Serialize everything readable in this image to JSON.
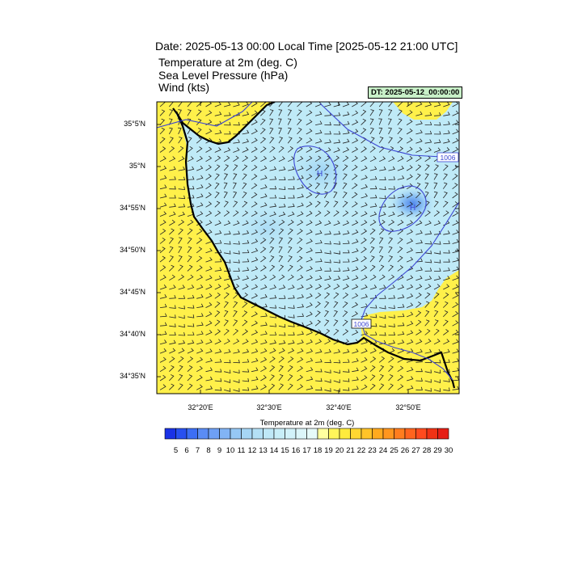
{
  "title": "Date: 2025-05-13  00:00 Local Time [2025-05-12  21:00 UTC]",
  "fields": [
    "Temperature at 2m   (deg. C)",
    "Sea Level Pressure   (hPa)",
    "Wind   (kts)"
  ],
  "dt_label": "DT: 2025-05-12_00:00:00",
  "lat_ticks": [
    "35°5'N",
    "35°N",
    "34°55'N",
    "34°50'N",
    "34°45'N",
    "34°40'N",
    "34°35'N"
  ],
  "lon_ticks": [
    "32°20'E",
    "32°30'E",
    "32°40'E",
    "32°50'E"
  ],
  "isobar_labels": [
    "1006",
    "1006"
  ],
  "high_labels": [
    "H",
    "H"
  ],
  "colorbar": {
    "title": "Temperature at 2m  (deg. C)",
    "labels": [
      "5",
      "6",
      "7",
      "8",
      "9",
      "10",
      "11",
      "12",
      "13",
      "14",
      "15",
      "16",
      "17",
      "18",
      "19",
      "20",
      "21",
      "22",
      "23",
      "24",
      "25",
      "26",
      "27",
      "28",
      "29",
      "30"
    ],
    "colors": [
      "#1a32e6",
      "#2850f0",
      "#3c6ef5",
      "#5a8cf5",
      "#6ea0f5",
      "#82b4f5",
      "#96c8f5",
      "#a6d6f5",
      "#b4e0f5",
      "#bfe8f7",
      "#c8eef8",
      "#d2f2fa",
      "#dcf6fa",
      "#e6fafa",
      "#ffffa0",
      "#fff55a",
      "#ffeb3c",
      "#ffd732",
      "#ffc328",
      "#ffaa1e",
      "#ff961e",
      "#ff7d1e",
      "#ff641e",
      "#ff4b1e",
      "#f03214",
      "#e61e14"
    ]
  },
  "colors": {
    "land": "#fff04a",
    "sea": "#bfeaf7",
    "isobar": "#3c46d2"
  }
}
